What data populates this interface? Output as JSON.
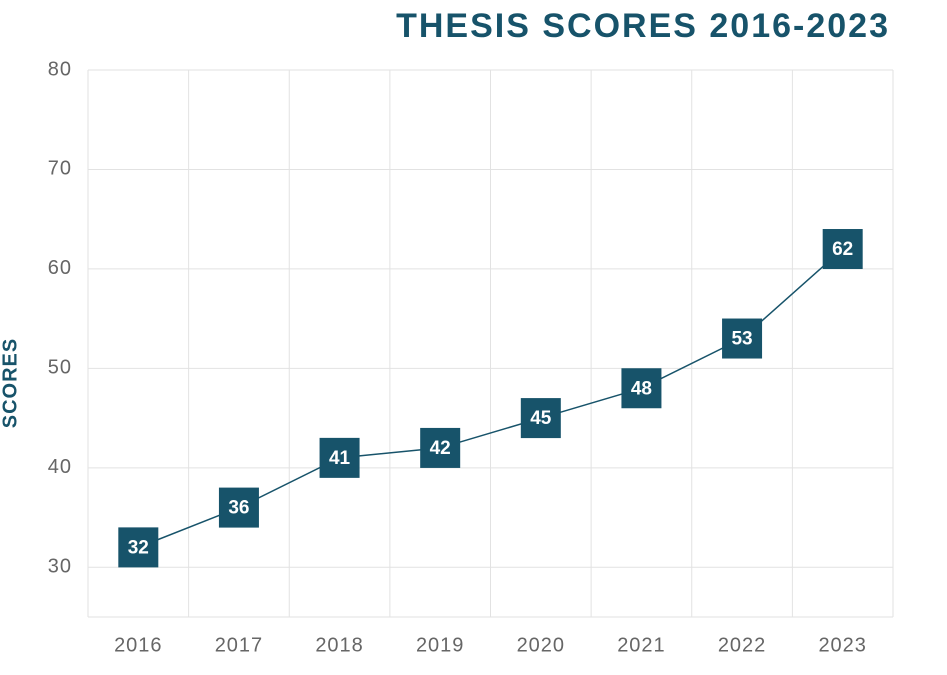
{
  "chart_data": {
    "type": "line",
    "title": "THESIS SCORES 2016-2023",
    "y_label": "SCORES",
    "categories": [
      "2016",
      "2017",
      "2018",
      "2019",
      "2020",
      "2021",
      "2022",
      "2023"
    ],
    "values": [
      32,
      36,
      41,
      42,
      45,
      48,
      53,
      62
    ],
    "color": "#17536a",
    "ylim": [
      25,
      80
    ],
    "yticks": [
      30,
      40,
      50,
      60,
      70,
      80
    ],
    "grid": true
  }
}
